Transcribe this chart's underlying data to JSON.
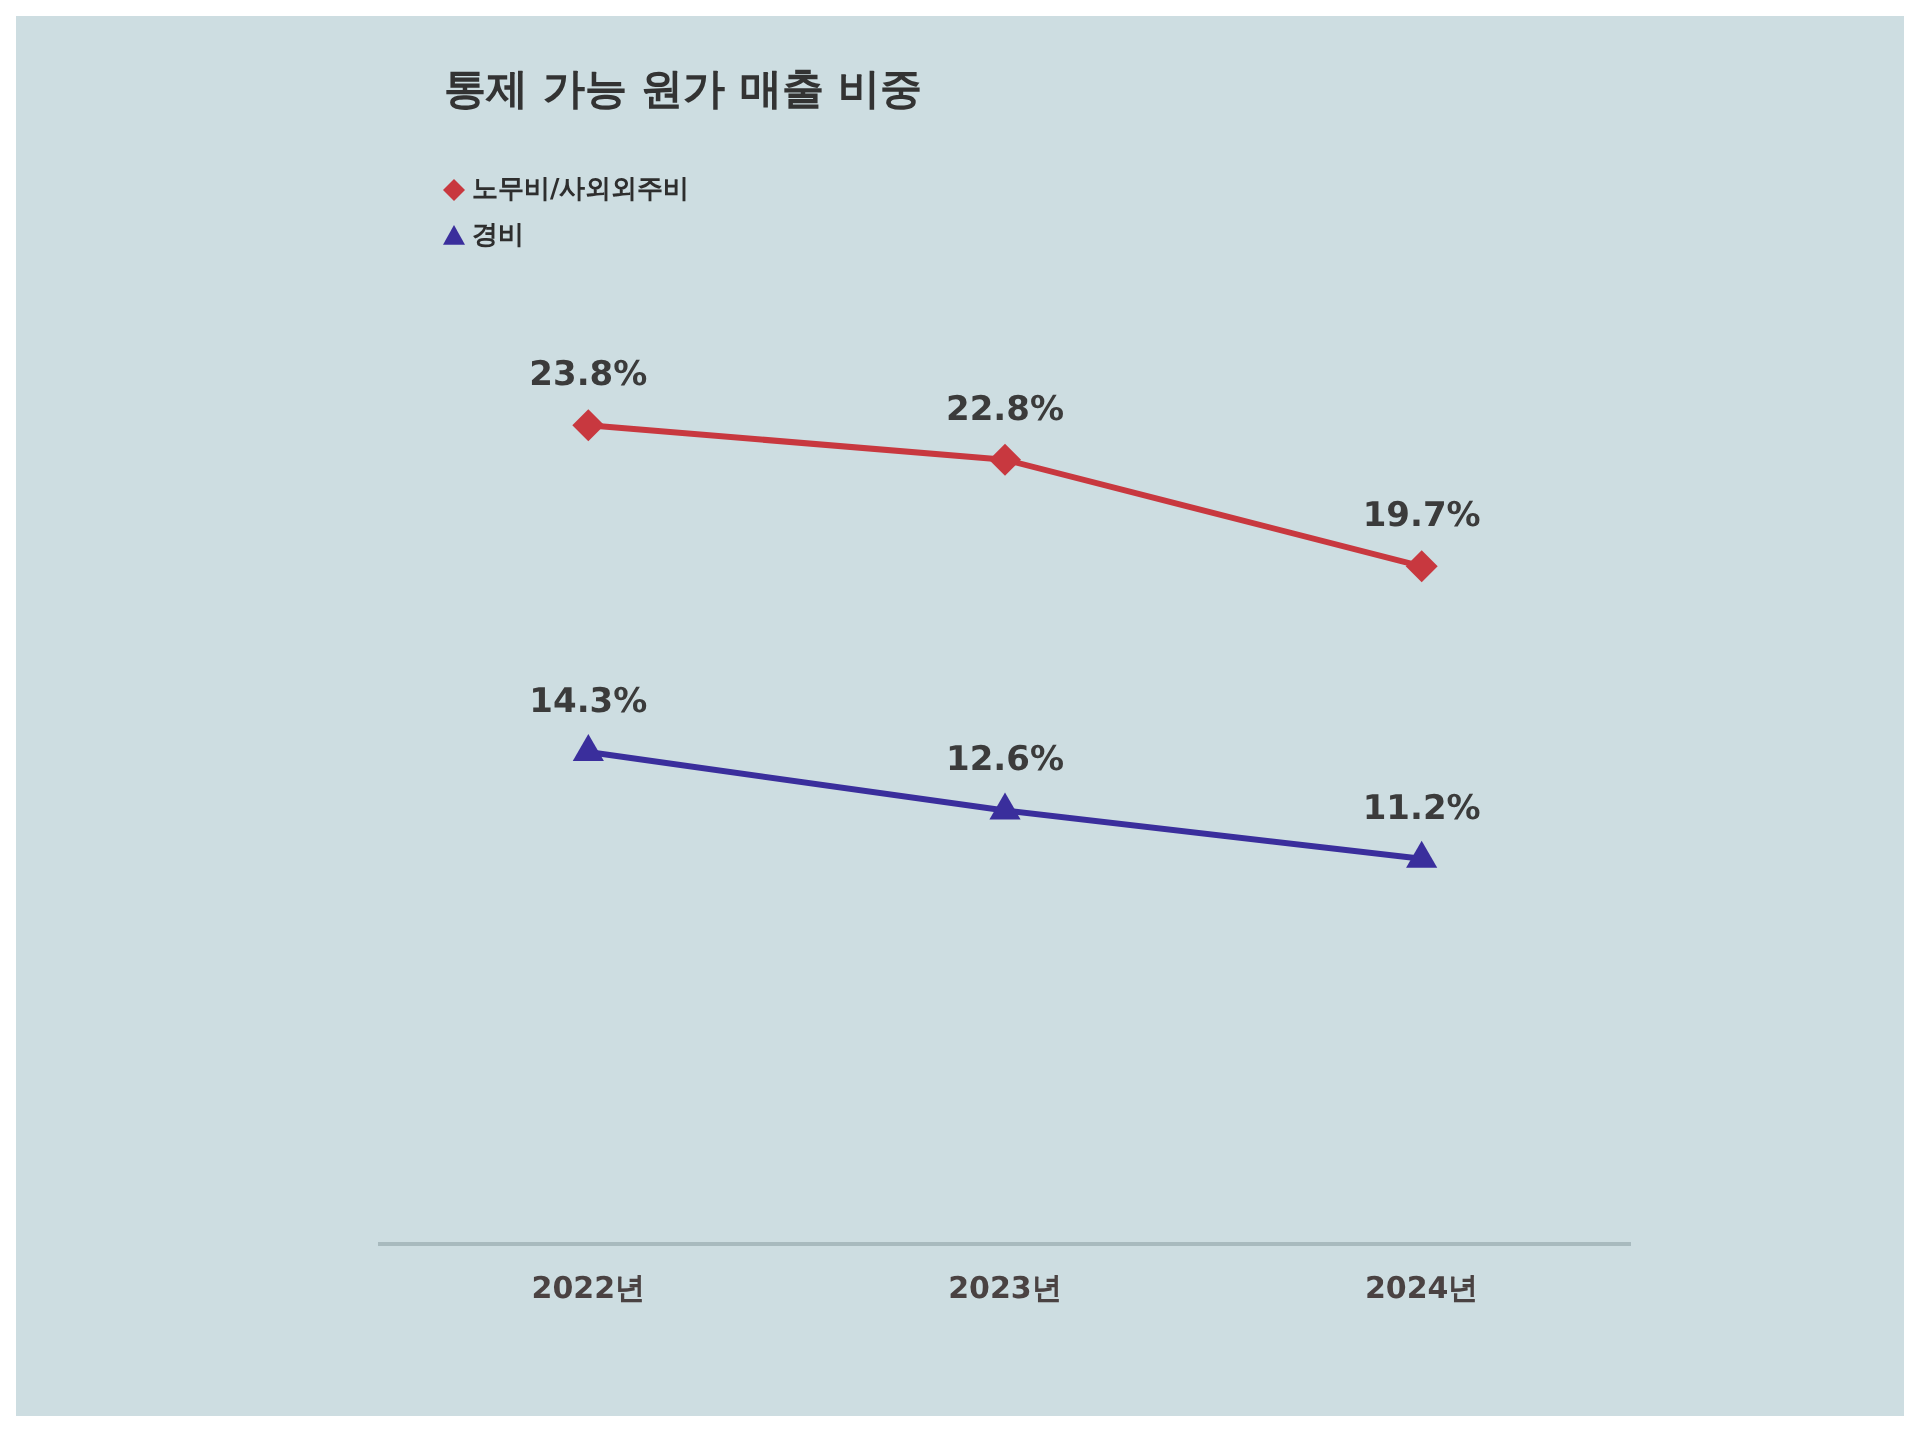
{
  "chart_data": {
    "type": "line",
    "title": "통제 가능 원가 매출 비중",
    "categories": [
      "2022년",
      "2023년",
      "2024년"
    ],
    "series": [
      {
        "name": "노무비/사외외주비",
        "color": "#c8383f",
        "marker": "diamond",
        "values": [
          23.8,
          22.8,
          19.7
        ],
        "value_labels": [
          "23.8%",
          "22.8%",
          "19.7%"
        ]
      },
      {
        "name": "경비",
        "color": "#3a2e9c",
        "marker": "triangle",
        "values": [
          14.3,
          12.6,
          11.2
        ],
        "value_labels": [
          "14.3%",
          "12.6%",
          "11.2%"
        ]
      }
    ],
    "tick_labels": "x",
    "grid": false,
    "legend": "top left"
  }
}
